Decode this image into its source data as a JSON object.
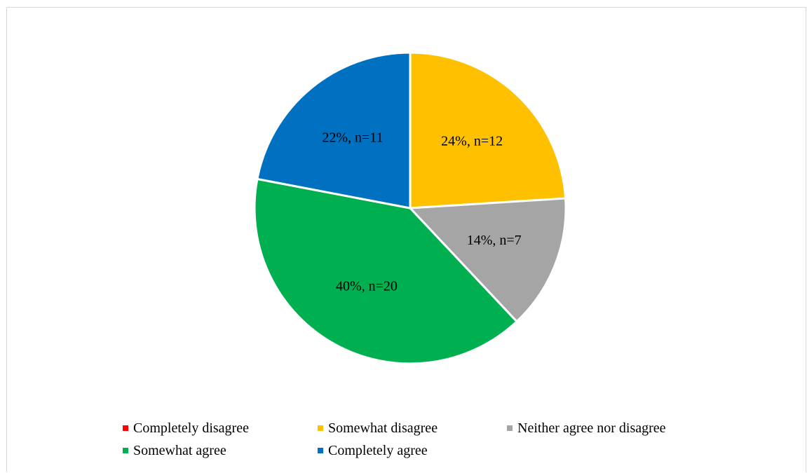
{
  "chart_data": {
    "type": "pie",
    "title": "",
    "categories": [
      "Completely disagree",
      "Somewhat disagree",
      "Neither agree nor disagree",
      "Somewhat agree",
      "Completely agree"
    ],
    "values": [
      0,
      12,
      7,
      20,
      11
    ],
    "percents": [
      0,
      24,
      14,
      40,
      22
    ],
    "labels": [
      "",
      "24%, n=12",
      "14%, n=7",
      "40%, n=20",
      "22%, n=11"
    ],
    "colors": [
      "#ff0000",
      "#ffc000",
      "#a5a5a5",
      "#00b050",
      "#0070c0"
    ],
    "legend_position": "bottom"
  }
}
